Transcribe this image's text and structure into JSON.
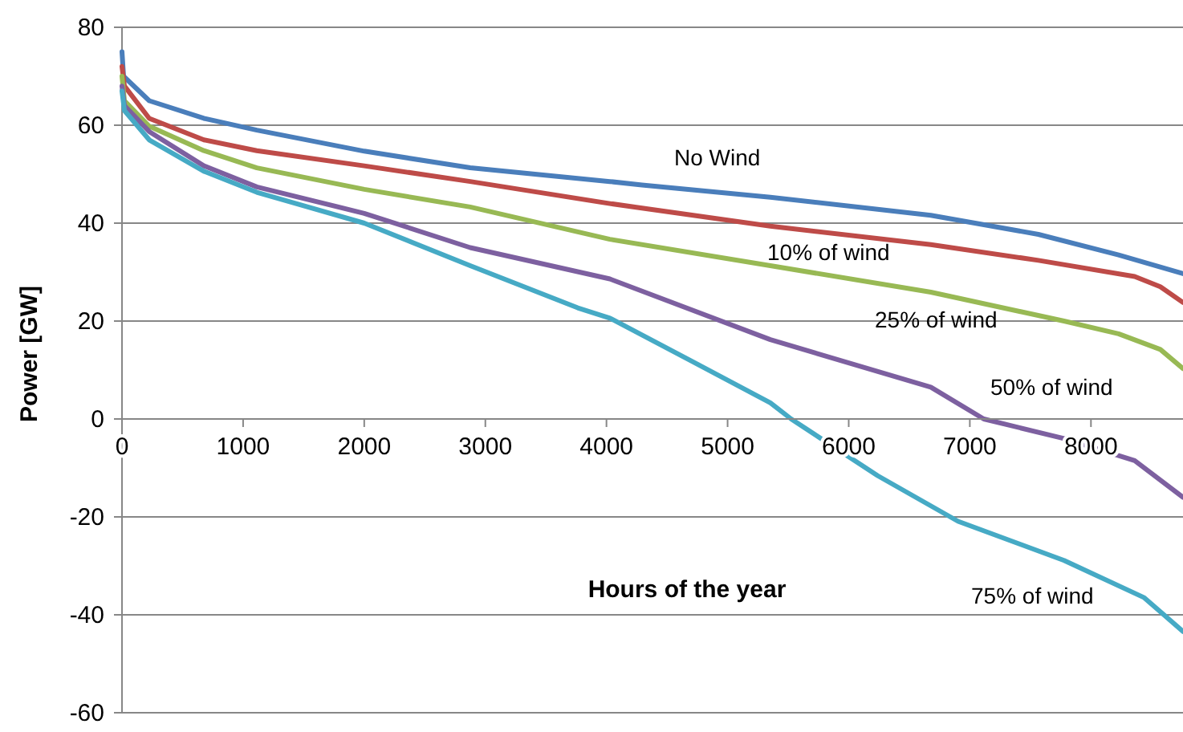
{
  "chart_data": {
    "type": "line",
    "xlabel": "Hours of the year",
    "ylabel": "Power [GW]",
    "xlim": [
      0,
      8760
    ],
    "ylim": [
      -60,
      80
    ],
    "xticks": [
      0,
      1000,
      2000,
      3000,
      4000,
      5000,
      6000,
      7000,
      8000
    ],
    "yticks": [
      -60,
      -40,
      -20,
      0,
      20,
      40,
      60,
      80
    ],
    "grid": "y",
    "legend": false,
    "marker": "none",
    "line_style": "solid",
    "series": [
      {
        "name": "No Wind",
        "color": "#4a7ebb",
        "x": [
          0,
          13,
          225,
          676,
          1113,
          2000,
          2875,
          4028,
          4293,
          5353,
          6678,
          7566,
          8228,
          8760
        ],
        "values": [
          75,
          70,
          65,
          61.4,
          59,
          54.7,
          51.3,
          48.5,
          47.8,
          45.3,
          41.6,
          37.7,
          33.5,
          29.7
        ]
      },
      {
        "name": "10% of wind",
        "color": "#be4b48",
        "x": [
          0,
          20,
          225,
          676,
          1113,
          2000,
          2875,
          4028,
          5353,
          6678,
          7566,
          8361,
          8573,
          8760
        ],
        "values": [
          72,
          68,
          61.4,
          57,
          54.8,
          51.7,
          48.5,
          44,
          39.4,
          35.6,
          32.4,
          29.1,
          27,
          23.8
        ]
      },
      {
        "name": "25% of wind",
        "color": "#98b954",
        "x": [
          0,
          20,
          225,
          676,
          1113,
          2000,
          2875,
          4028,
          5353,
          6678,
          7778,
          8228,
          8573,
          8760
        ],
        "values": [
          70,
          65,
          59.8,
          54.8,
          51.3,
          46.9,
          43.3,
          36.7,
          31.3,
          25.9,
          20,
          17.4,
          14.2,
          10.3
        ]
      },
      {
        "name": "50% of wind",
        "color": "#7d60a0",
        "x": [
          0,
          20,
          225,
          676,
          1113,
          2000,
          2875,
          4028,
          5353,
          6678,
          7115,
          7778,
          8361,
          8760
        ],
        "values": [
          68,
          64,
          58.7,
          51.7,
          47.4,
          42,
          35,
          28.6,
          16.2,
          6.5,
          0,
          -4,
          -8.5,
          -16
        ]
      },
      {
        "name": "75% of wind",
        "color": "#46aac5",
        "x": [
          0,
          20,
          225,
          676,
          1113,
          2000,
          2875,
          3763,
          4028,
          4690,
          5353,
          5525,
          6240,
          6903,
          7778,
          8440,
          8760
        ],
        "values": [
          67,
          63,
          57,
          50.6,
          46.3,
          40,
          31.3,
          22.7,
          20.6,
          12,
          3.3,
          0,
          -11.6,
          -20.9,
          -28.9,
          -36.5,
          -43.4
        ]
      }
    ]
  }
}
